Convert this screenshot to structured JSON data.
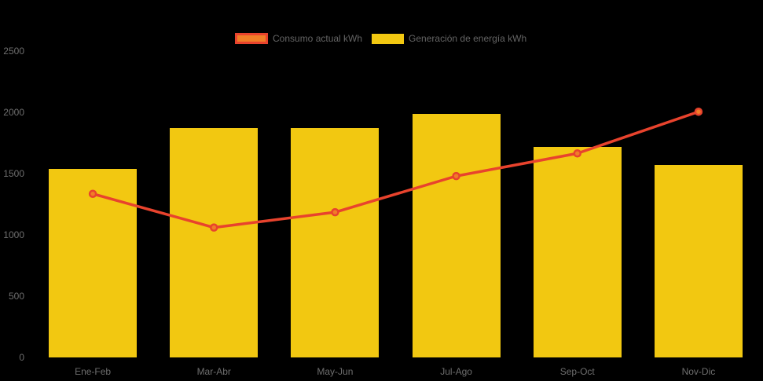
{
  "chart_data": {
    "type": "combo",
    "categories": [
      "Ene-Feb",
      "Mar-Abr",
      "May-Jun",
      "Jul-Ago",
      "Sep-Oct",
      "Nov-Dic"
    ],
    "series": [
      {
        "name": "Consumo actual kWh",
        "type": "line",
        "color": "#E8432D",
        "marker_color": "#F07E27",
        "values": [
          1335,
          1060,
          1185,
          1480,
          1665,
          2005
        ]
      },
      {
        "name": "Generación de energía kWh",
        "type": "bar",
        "color": "#F2C811",
        "values": [
          1540,
          1870,
          1870,
          1990,
          1720,
          1570
        ]
      }
    ],
    "ylim": [
      0,
      2500
    ],
    "yticks": [
      0,
      500,
      1000,
      1500,
      2000,
      2500
    ],
    "grid": false,
    "legend_position": "top",
    "background": "#000000",
    "axis_text_color": "#6E6E6E"
  }
}
